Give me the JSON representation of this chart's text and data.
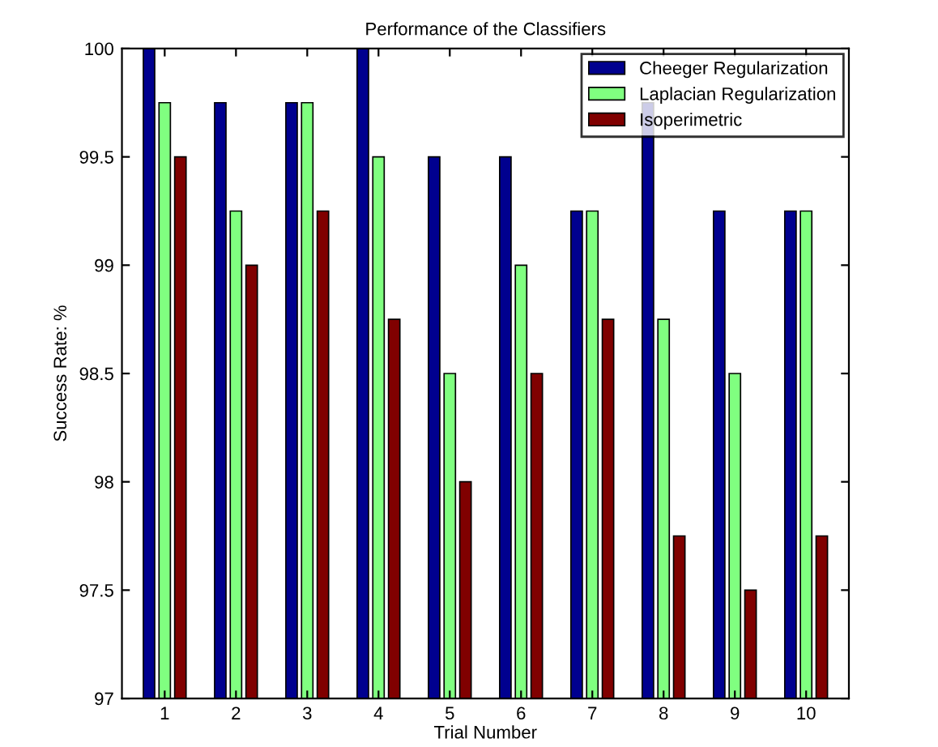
{
  "chart_data": {
    "type": "bar",
    "title": "Performance of the Classifiers",
    "xlabel": "Trial Number",
    "ylabel": "Success Rate: %",
    "categories": [
      "1",
      "2",
      "3",
      "4",
      "5",
      "6",
      "7",
      "8",
      "9",
      "10"
    ],
    "series": [
      {
        "name": "Cheeger Regularization",
        "color": "#00008f",
        "values": [
          100,
          99.75,
          99.75,
          100,
          99.5,
          99.5,
          99.25,
          99.75,
          99.25,
          99.25
        ]
      },
      {
        "name": "Laplacian Regularization",
        "color": "#80ff80",
        "values": [
          99.75,
          99.25,
          99.75,
          99.5,
          98.5,
          99,
          99.25,
          98.75,
          98.5,
          99.25
        ]
      },
      {
        "name": "Isoperimetric",
        "color": "#800000",
        "values": [
          99.5,
          99,
          99.25,
          98.75,
          98,
          98.5,
          98.75,
          97.75,
          97.5,
          97.75
        ]
      }
    ],
    "ylim": [
      97,
      100
    ],
    "yticks": [
      97,
      97.5,
      98,
      98.5,
      99,
      99.5,
      100
    ],
    "grid": false,
    "legend": "top right"
  }
}
